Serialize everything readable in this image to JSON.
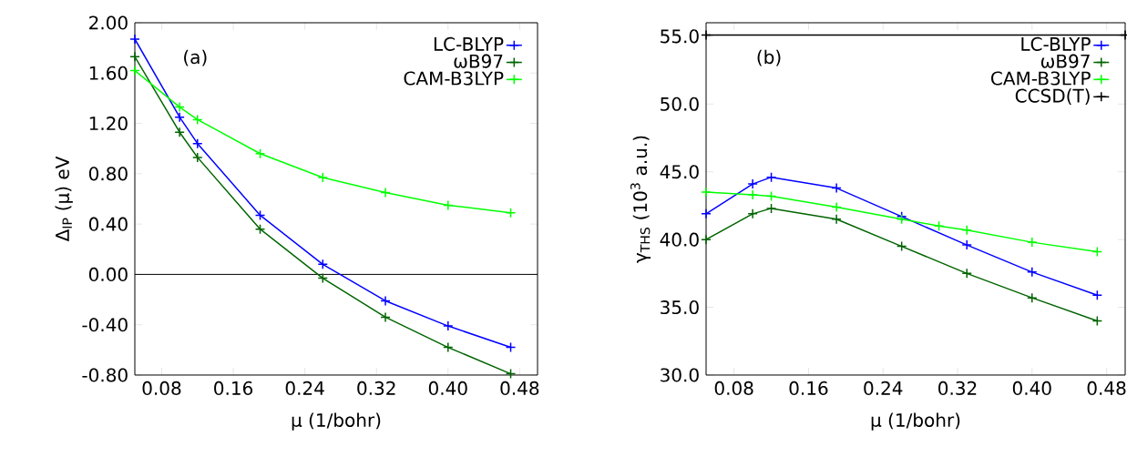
{
  "chart_data": [
    {
      "type": "line",
      "xlabel": "μ (1/bohr)",
      "ylabel": "Δ$_{IP}$ (μ) eV",
      "annotations": [
        "(a)"
      ],
      "xlim": [
        0.05,
        0.5
      ],
      "ylim": [
        -0.8,
        2.0
      ],
      "xticks": [
        0.08,
        0.16,
        0.24,
        0.32,
        {
          "value": 0.4,
          "label": "0.40"
        },
        0.48
      ],
      "yticks": [
        {
          "value": -0.8,
          "label": "-0.80"
        },
        {
          "value": -0.4,
          "label": "-0.40"
        },
        {
          "value": 0,
          "label": "0.00"
        },
        {
          "value": 0.4,
          "label": "0.40"
        },
        {
          "value": 0.8,
          "label": "0.80"
        },
        {
          "value": 1.2,
          "label": "1.20"
        },
        {
          "value": 1.6,
          "label": "1.60"
        },
        {
          "value": 2.0,
          "label": "2.00"
        }
      ],
      "x": [
        0.05,
        0.1,
        0.12,
        0.19,
        0.26,
        0.33,
        0.4,
        0.47
      ],
      "series": [
        {
          "name": "LC-BLYP",
          "color": "#0000ff",
          "values": [
            1.87,
            1.25,
            1.04,
            0.47,
            0.08,
            -0.21,
            -0.41,
            -0.58
          ]
        },
        {
          "name": "ωB97",
          "color": "#006400",
          "values": [
            1.73,
            1.13,
            0.93,
            0.36,
            -0.03,
            -0.34,
            -0.58,
            -0.79
          ]
        },
        {
          "name": "CAM-B3LYP",
          "color": "#00ff00",
          "values": [
            1.62,
            1.33,
            1.23,
            0.96,
            0.77,
            0.65,
            0.55,
            0.49
          ]
        }
      ],
      "ref_lines": [
        {
          "axis": "y",
          "value": 0,
          "color": "#000000"
        }
      ],
      "legend": "top right",
      "marker": "cross",
      "line_style": "solid"
    },
    {
      "type": "line",
      "xlabel": "μ (1/bohr)",
      "ylabel": "γ$_{THS}$ (10$^{3}$ a.u.)",
      "annotations": [
        "(b)"
      ],
      "xlim": [
        0.05,
        0.5
      ],
      "ylim": [
        30,
        56
      ],
      "xticks": [
        0.08,
        0.16,
        0.24,
        0.32,
        {
          "value": 0.4,
          "label": "0.40"
        },
        0.48
      ],
      "yticks": [
        {
          "value": 30,
          "label": "30.0"
        },
        {
          "value": 35,
          "label": "35.0"
        },
        {
          "value": 40,
          "label": "40.0"
        },
        {
          "value": 45,
          "label": "45.0"
        },
        {
          "value": 50,
          "label": "50.0"
        },
        {
          "value": 55,
          "label": "55.0"
        }
      ],
      "x": [
        0.05,
        0.1,
        0.12,
        0.19,
        0.26,
        0.33,
        0.4,
        0.47
      ],
      "series": [
        {
          "name": "LC-BLYP",
          "color": "#0000ff",
          "values": [
            41.9,
            44.1,
            44.6,
            43.8,
            41.7,
            39.6,
            37.6,
            35.9
          ]
        },
        {
          "name": "ωB97",
          "color": "#006400",
          "values": [
            40.0,
            41.9,
            42.3,
            41.5,
            39.5,
            37.5,
            35.7,
            34.0
          ]
        },
        {
          "name": "CAM-B3LYP",
          "color": "#00ff00",
          "x": [
            0.05,
            0.1,
            0.12,
            0.19,
            0.26,
            0.3,
            0.33,
            0.4,
            0.47
          ],
          "values": [
            43.5,
            43.3,
            43.2,
            42.4,
            41.5,
            41.0,
            40.7,
            39.8,
            39.1
          ]
        },
        {
          "name": "CCSD(T)",
          "color": "#000000",
          "x": [
            0.05,
            0.5
          ],
          "values": [
            55.1,
            55.1
          ]
        }
      ],
      "legend": "top right",
      "marker": "cross",
      "line_style": "solid"
    }
  ]
}
